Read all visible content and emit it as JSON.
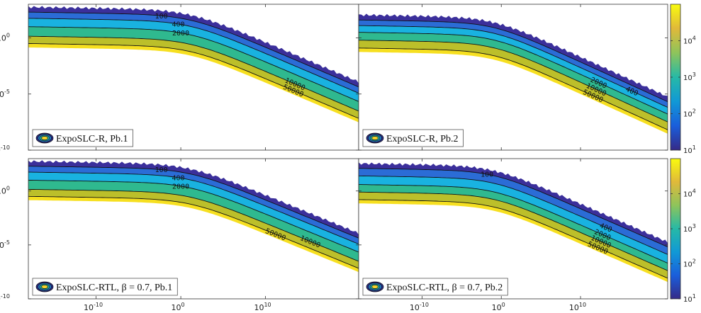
{
  "chart_data": [
    {
      "type": "contour",
      "panel": "top-left",
      "legend": "ExpoSLC-R, Pb.1",
      "xscale": "log",
      "yscale": "log",
      "xlim": [
        1e-18,
        1e+21
      ],
      "ylim": [
        1e-10,
        1000.0
      ],
      "levels": [
        100,
        400,
        2000,
        10000,
        50000
      ],
      "knee_x": 10,
      "plateau_logy": [
        2.3,
        1.75,
        1.0,
        0.15,
        -0.5
      ],
      "slope": -0.31,
      "max_extent_logx": 21,
      "label_positions_logx": [
        -2.3,
        -0.3,
        0.0,
        13.5,
        13.3
      ]
    },
    {
      "type": "contour",
      "panel": "top-right",
      "legend": "ExpoSLC-R, Pb.2",
      "xscale": "log",
      "yscale": "log",
      "xlim": [
        1e-18,
        1e+21
      ],
      "ylim": [
        1e-10,
        1000.0
      ],
      "levels": [
        100,
        400,
        2000,
        10000,
        50000
      ],
      "knee_x": 0.1,
      "plateau_logy": [
        1.6,
        1.1,
        0.5,
        -0.2,
        -0.9
      ],
      "slope": -0.31,
      "max_extent_logx": 21,
      "label_positions_logx": [
        null,
        16.5,
        12.3,
        12.0,
        11.6
      ]
    },
    {
      "type": "contour",
      "panel": "bottom-left",
      "legend": "ExpoSLC-RTL, β = 0.7, Pb.1",
      "xscale": "log",
      "yscale": "log",
      "xlim": [
        1e-18,
        1e+21
      ],
      "ylim": [
        1e-10,
        1000.0
      ],
      "levels": [
        100,
        400,
        2000,
        10000,
        50000
      ],
      "knee_x": 10,
      "plateau_logy": [
        2.3,
        1.75,
        1.0,
        0.15,
        -0.5
      ],
      "slope": -0.31,
      "max_extent_logx": 21,
      "label_positions_logx": [
        -2.3,
        -0.3,
        0.0,
        15.3,
        11.2
      ]
    },
    {
      "type": "contour",
      "panel": "bottom-right",
      "legend": "ExpoSLC-RTL, β = 0.7, Pb.2",
      "xscale": "log",
      "yscale": "log",
      "xlim": [
        1e-18,
        1e+21
      ],
      "ylim": [
        1e-10,
        1000.0
      ],
      "levels": [
        100,
        400,
        2000,
        10000,
        50000
      ],
      "knee_x": 0.1,
      "plateau_logy": [
        2.1,
        1.4,
        0.6,
        -0.1,
        -0.8
      ],
      "slope": -0.31,
      "max_extent_logx": 21,
      "label_positions_logx": [
        -1.8,
        13.2,
        12.8,
        12.6,
        12.2
      ]
    }
  ],
  "axis_ticks": {
    "x": [
      {
        "base": "10",
        "exp": "-10",
        "value": -10
      },
      {
        "base": "10",
        "exp": "0",
        "value": 0
      },
      {
        "base": "10",
        "exp": "10",
        "value": 10
      }
    ],
    "y": [
      {
        "base": "10",
        "exp": "0",
        "value": 0
      },
      {
        "base": "10",
        "exp": "-5",
        "value": -5
      },
      {
        "base": "10",
        "exp": "-10",
        "value": -10
      }
    ]
  },
  "colorbar": {
    "scale": "log",
    "range": [
      10,
      100000
    ],
    "ticks": [
      {
        "base": "10",
        "exp": "1",
        "value": 1
      },
      {
        "base": "10",
        "exp": "2",
        "value": 2
      },
      {
        "base": "10",
        "exp": "3",
        "value": 3
      },
      {
        "base": "10",
        "exp": "4",
        "value": 4
      }
    ],
    "colormap": "parula"
  },
  "colors": {
    "fill_levels": [
      "#3b2f9b",
      "#2b6cd6",
      "#19b2e0",
      "#2fb98f",
      "#bcbf2a",
      "#f6df20"
    ],
    "parula_stops": [
      "#352a87",
      "#1a5edb",
      "#1199d6",
      "#26b9a6",
      "#8ec45b",
      "#e0b93a",
      "#f9fb0e"
    ]
  },
  "legend_symbol": "contour-ellipse-icon"
}
